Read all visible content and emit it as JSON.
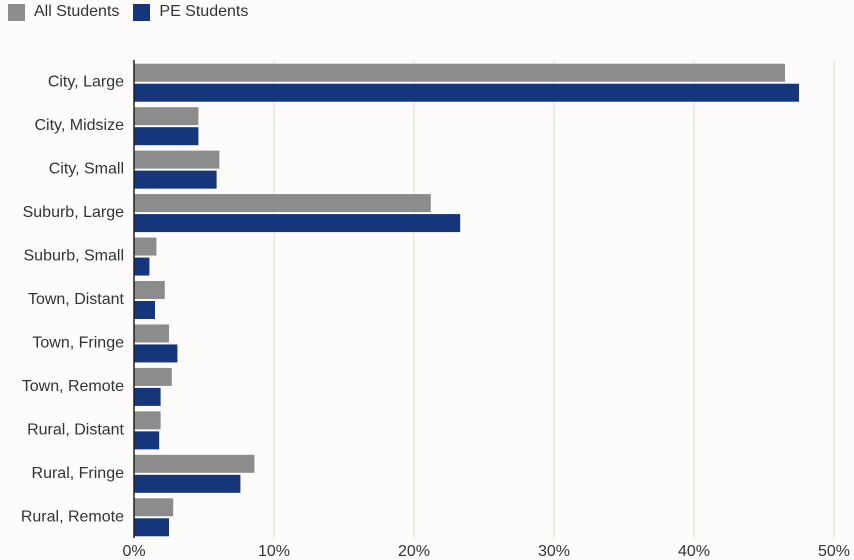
{
  "chart_data": {
    "type": "bar",
    "orientation": "horizontal",
    "categories": [
      "City, Large",
      "City, Midsize",
      "City, Small",
      "Suburb, Large",
      "Suburb, Small",
      "Town, Distant",
      "Town, Fringe",
      "Town, Remote",
      "Rural, Distant",
      "Rural, Fringe",
      "Rural, Remote"
    ],
    "series": [
      {
        "name": "All Students",
        "color": "#8c8c8c",
        "values": [
          46.5,
          4.6,
          6.1,
          21.2,
          1.6,
          2.2,
          2.5,
          2.7,
          1.9,
          8.6,
          2.8
        ]
      },
      {
        "name": "PE Students",
        "color": "#15367a",
        "values": [
          47.5,
          4.6,
          5.9,
          23.3,
          1.1,
          1.5,
          3.1,
          1.9,
          1.8,
          7.6,
          2.5
        ]
      }
    ],
    "xlim": [
      0,
      50
    ],
    "xticks": [
      0,
      10,
      20,
      30,
      40,
      50
    ],
    "tick_format": "{v}%",
    "grid": true,
    "legend": "top-left"
  },
  "colors": {
    "grid": "#ece6d8",
    "axis": "#222222",
    "text": "#333333"
  }
}
